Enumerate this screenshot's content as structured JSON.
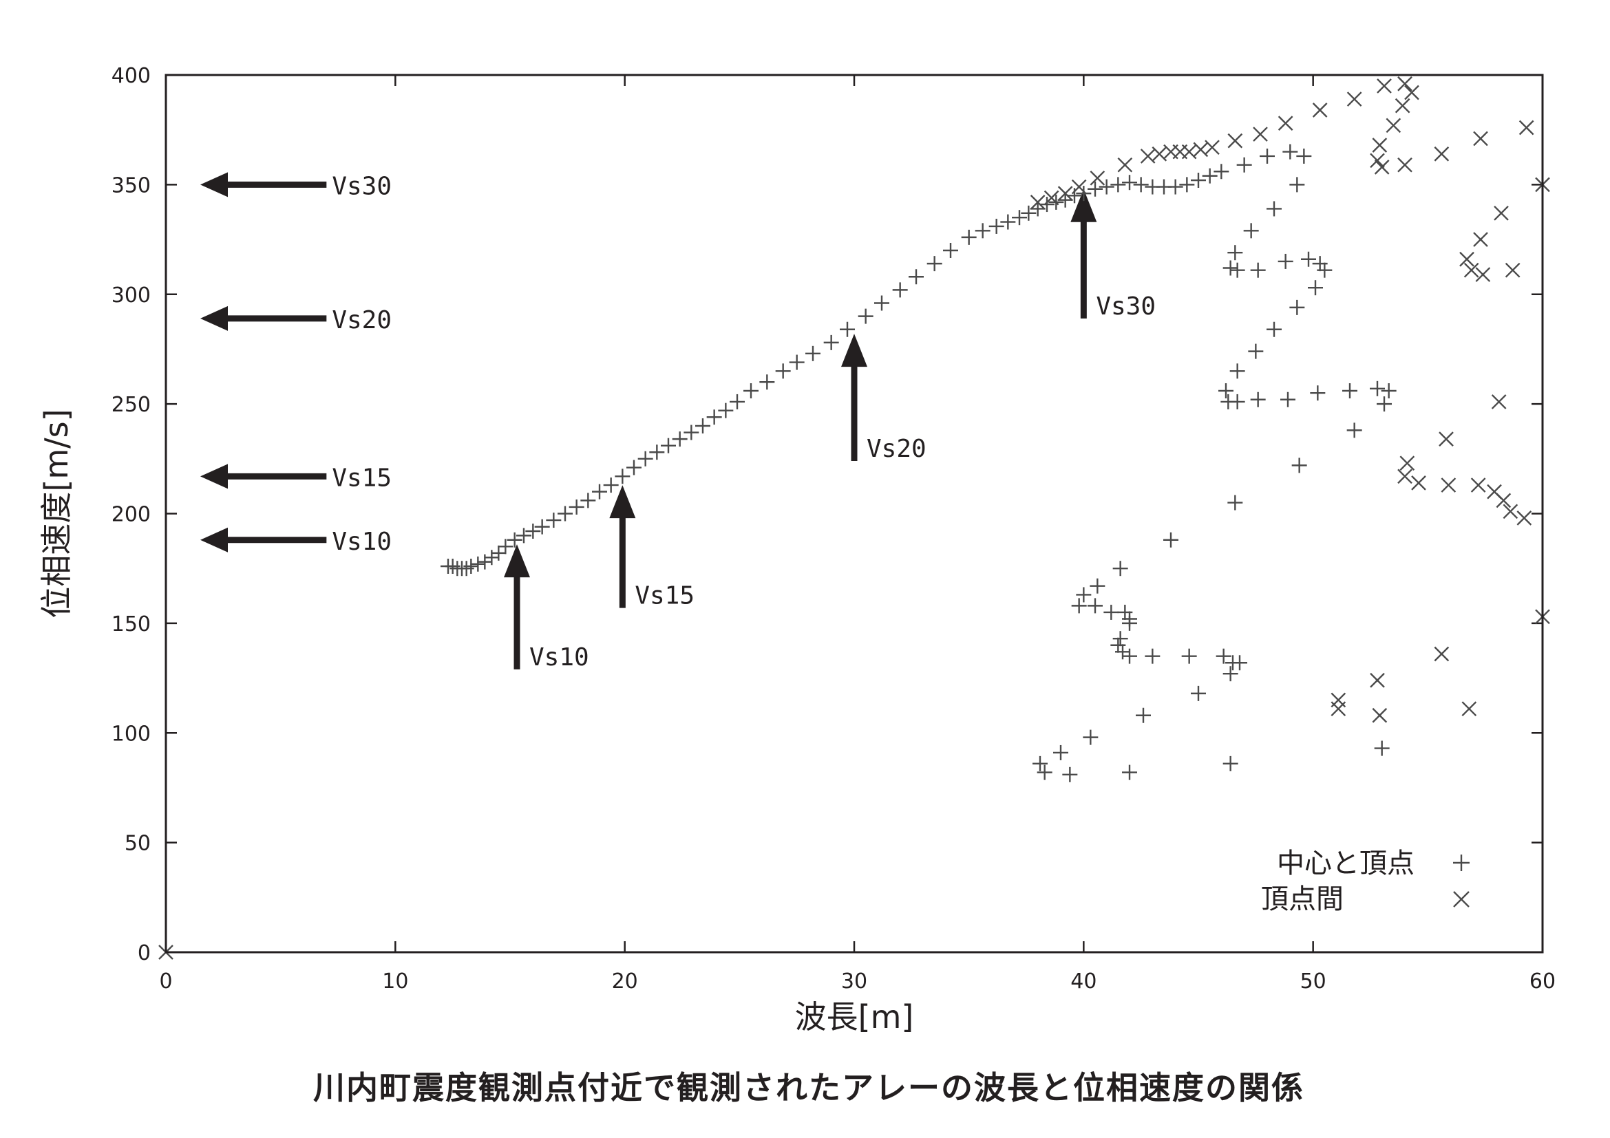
{
  "chart_data": {
    "type": "scatter",
    "caption": "川内町震度観測点付近で観測されたアレーの波長と位相速度の関係",
    "xlabel": "波長[m]",
    "ylabel": "位相速度[m/s]",
    "xlim": [
      0,
      60
    ],
    "ylim": [
      0,
      400
    ],
    "x_ticks": [
      0,
      10,
      20,
      30,
      40,
      50,
      60
    ],
    "y_ticks": [
      0,
      50,
      100,
      150,
      200,
      250,
      300,
      350,
      400
    ],
    "legend": {
      "position": "bottom-right"
    },
    "series": [
      {
        "name": "中心と頂点",
        "marker": "plus",
        "points": [
          [
            12.3,
            176
          ],
          [
            12.5,
            176
          ],
          [
            12.7,
            175
          ],
          [
            12.9,
            175
          ],
          [
            13.1,
            175
          ],
          [
            13.3,
            176
          ],
          [
            13.6,
            177
          ],
          [
            13.9,
            178
          ],
          [
            14.2,
            180
          ],
          [
            14.5,
            182
          ],
          [
            14.8,
            185
          ],
          [
            15.2,
            188
          ],
          [
            15.6,
            190
          ],
          [
            16.0,
            192
          ],
          [
            16.4,
            194
          ],
          [
            16.9,
            197
          ],
          [
            17.4,
            200
          ],
          [
            17.9,
            203
          ],
          [
            18.4,
            206
          ],
          [
            18.9,
            210
          ],
          [
            19.4,
            213
          ],
          [
            19.9,
            217
          ],
          [
            20.4,
            221
          ],
          [
            20.9,
            225
          ],
          [
            21.4,
            228
          ],
          [
            21.9,
            231
          ],
          [
            22.4,
            234
          ],
          [
            22.9,
            237
          ],
          [
            23.4,
            240
          ],
          [
            23.9,
            244
          ],
          [
            24.4,
            247
          ],
          [
            24.9,
            251
          ],
          [
            25.5,
            256
          ],
          [
            26.2,
            260
          ],
          [
            26.9,
            265
          ],
          [
            27.5,
            269
          ],
          [
            28.2,
            273
          ],
          [
            29.0,
            278
          ],
          [
            29.7,
            284
          ],
          [
            30.5,
            290
          ],
          [
            31.2,
            296
          ],
          [
            32.0,
            302
          ],
          [
            32.7,
            308
          ],
          [
            33.5,
            314
          ],
          [
            34.2,
            320
          ],
          [
            35.0,
            326
          ],
          [
            35.6,
            329
          ],
          [
            36.2,
            331
          ],
          [
            36.7,
            333
          ],
          [
            37.2,
            335
          ],
          [
            37.6,
            337
          ],
          [
            38.0,
            339
          ],
          [
            38.4,
            341
          ],
          [
            38.8,
            342
          ],
          [
            39.2,
            343
          ],
          [
            39.6,
            345
          ],
          [
            40.0,
            346
          ],
          [
            40.5,
            348
          ],
          [
            41.0,
            349
          ],
          [
            41.5,
            350
          ],
          [
            42.0,
            351
          ],
          [
            42.5,
            350
          ],
          [
            43.0,
            349
          ],
          [
            43.5,
            349
          ],
          [
            44.0,
            349
          ],
          [
            44.5,
            350
          ],
          [
            45.0,
            352
          ],
          [
            45.5,
            354
          ],
          [
            46.0,
            356
          ],
          [
            47.0,
            359
          ],
          [
            48.0,
            363
          ],
          [
            49.0,
            365
          ],
          [
            49.6,
            363
          ],
          [
            49.3,
            350
          ],
          [
            48.3,
            339
          ],
          [
            47.3,
            329
          ],
          [
            46.6,
            319
          ],
          [
            46.4,
            312
          ],
          [
            46.7,
            311
          ],
          [
            47.6,
            311
          ],
          [
            48.8,
            315
          ],
          [
            49.8,
            316
          ],
          [
            50.3,
            314
          ],
          [
            50.5,
            311
          ],
          [
            50.1,
            303
          ],
          [
            49.3,
            294
          ],
          [
            48.3,
            284
          ],
          [
            47.5,
            274
          ],
          [
            46.7,
            265
          ],
          [
            46.2,
            256
          ],
          [
            46.3,
            251
          ],
          [
            46.7,
            251
          ],
          [
            47.6,
            252
          ],
          [
            48.9,
            252
          ],
          [
            50.2,
            255
          ],
          [
            51.6,
            256
          ],
          [
            52.8,
            257
          ],
          [
            53.3,
            256
          ],
          [
            53.1,
            250
          ],
          [
            51.8,
            238
          ],
          [
            49.4,
            222
          ],
          [
            46.6,
            205
          ],
          [
            43.8,
            188
          ],
          [
            41.6,
            175
          ],
          [
            40.6,
            167
          ],
          [
            40.0,
            163
          ],
          [
            39.8,
            158
          ],
          [
            40.5,
            158
          ],
          [
            41.2,
            155
          ],
          [
            41.8,
            155
          ],
          [
            42.0,
            152
          ],
          [
            42.0,
            150
          ],
          [
            41.6,
            143
          ],
          [
            41.5,
            140
          ],
          [
            41.7,
            137
          ],
          [
            42.0,
            135
          ],
          [
            43.0,
            135
          ],
          [
            44.6,
            135
          ],
          [
            46.1,
            135
          ],
          [
            46.5,
            132
          ],
          [
            46.8,
            132
          ],
          [
            46.4,
            127
          ],
          [
            45.0,
            118
          ],
          [
            42.6,
            108
          ],
          [
            40.3,
            98
          ],
          [
            39.0,
            91
          ],
          [
            38.1,
            86
          ],
          [
            38.3,
            82
          ],
          [
            39.4,
            81
          ],
          [
            42.0,
            82
          ],
          [
            46.4,
            86
          ],
          [
            53.0,
            93
          ]
        ]
      },
      {
        "name": "頂点間",
        "marker": "cross",
        "points": [
          [
            0,
            0
          ],
          [
            38.0,
            342
          ],
          [
            38.6,
            344
          ],
          [
            39.2,
            346
          ],
          [
            39.8,
            349
          ],
          [
            40.6,
            353
          ],
          [
            41.8,
            359
          ],
          [
            42.8,
            363
          ],
          [
            43.3,
            364
          ],
          [
            43.8,
            365
          ],
          [
            44.2,
            365
          ],
          [
            44.6,
            365
          ],
          [
            45.1,
            366
          ],
          [
            45.6,
            367
          ],
          [
            46.6,
            370
          ],
          [
            47.7,
            373
          ],
          [
            48.8,
            378
          ],
          [
            50.3,
            384
          ],
          [
            51.8,
            389
          ],
          [
            53.1,
            395
          ],
          [
            54.0,
            396
          ],
          [
            54.3,
            392
          ],
          [
            53.9,
            386
          ],
          [
            53.5,
            377
          ],
          [
            52.9,
            368
          ],
          [
            52.8,
            361
          ],
          [
            53.0,
            358
          ],
          [
            54.0,
            359
          ],
          [
            55.6,
            364
          ],
          [
            57.3,
            371
          ],
          [
            59.3,
            376
          ],
          [
            60.0,
            350
          ],
          [
            58.2,
            337
          ],
          [
            57.3,
            325
          ],
          [
            56.7,
            316
          ],
          [
            56.9,
            311
          ],
          [
            57.4,
            309
          ],
          [
            58.7,
            311
          ],
          [
            58.1,
            251
          ],
          [
            55.8,
            234
          ],
          [
            54.1,
            223
          ],
          [
            54.0,
            217
          ],
          [
            54.6,
            214
          ],
          [
            55.9,
            213
          ],
          [
            57.2,
            213
          ],
          [
            57.9,
            210
          ],
          [
            58.3,
            206
          ],
          [
            58.6,
            201
          ],
          [
            59.2,
            198
          ],
          [
            60.0,
            153
          ],
          [
            55.6,
            136
          ],
          [
            51.1,
            115
          ],
          [
            51.1,
            111
          ],
          [
            52.8,
            124
          ],
          [
            52.9,
            108
          ],
          [
            56.8,
            111
          ]
        ]
      }
    ],
    "annotations": {
      "horizontal_arrows": [
        {
          "label": "Vs30",
          "y": 350
        },
        {
          "label": "Vs20",
          "y": 289
        },
        {
          "label": "Vs15",
          "y": 217
        },
        {
          "label": "Vs10",
          "y": 188
        }
      ],
      "vertical_arrows": [
        {
          "label": "Vs10",
          "x": 15.3,
          "y_from": 129,
          "y_to": 186
        },
        {
          "label": "Vs15",
          "x": 19.9,
          "y_from": 157,
          "y_to": 213
        },
        {
          "label": "Vs20",
          "x": 30.0,
          "y_from": 224,
          "y_to": 282
        },
        {
          "label": "Vs30",
          "x": 40.0,
          "y_from": 289,
          "y_to": 348
        }
      ]
    }
  }
}
